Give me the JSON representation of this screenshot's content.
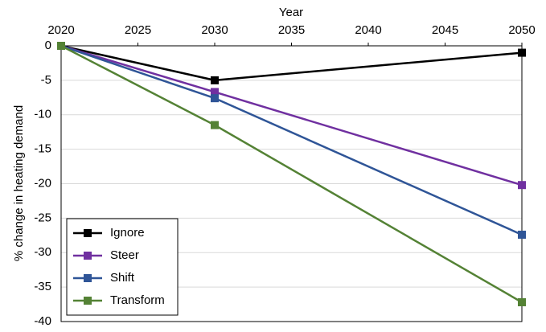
{
  "chart_data": {
    "type": "line",
    "x_label": "Year",
    "y_label": "% change in heating demand",
    "x": [
      2020,
      2030,
      2050
    ],
    "series": [
      {
        "name": "Ignore",
        "color": "#000000",
        "values": [
          0,
          -5,
          -1
        ]
      },
      {
        "name": "Steer",
        "color": "#7030a0",
        "values": [
          0,
          -6.7,
          -20.2
        ]
      },
      {
        "name": "Shift",
        "color": "#2f5597",
        "values": [
          0,
          -7.6,
          -27.4
        ]
      },
      {
        "name": "Transform",
        "color": "#548235",
        "values": [
          0,
          -11.5,
          -37.2
        ]
      }
    ],
    "xlim": [
      2020,
      2050
    ],
    "xticks": [
      2020,
      2025,
      2030,
      2035,
      2040,
      2045,
      2050
    ],
    "ylim": [
      -40,
      0
    ],
    "yticks": [
      0,
      -5,
      -10,
      -15,
      -20,
      -25,
      -30,
      -35,
      -40
    ],
    "grid": true,
    "legend": "lower left"
  }
}
